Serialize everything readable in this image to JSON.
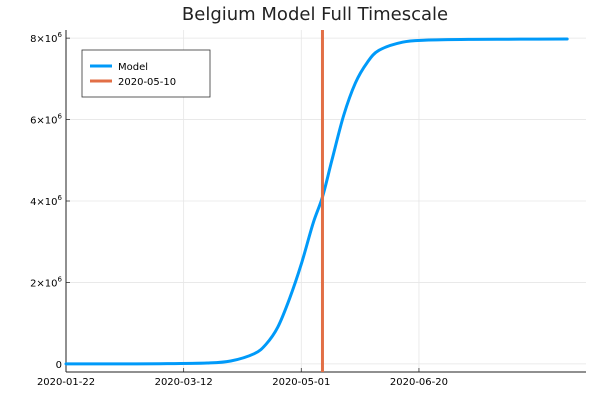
{
  "chart_data": {
    "type": "line",
    "title": "Belgium Model Full Timescale",
    "xlabel": "",
    "ylabel": "",
    "x_axis_type": "date",
    "xlim": [
      "2020-01-22",
      "2020-08-30"
    ],
    "ylim": [
      -200000,
      8200000
    ],
    "grid": true,
    "legend_position": "top-left",
    "x_tick_labels": [
      "2020-01-22",
      "2020-03-12",
      "2020-05-01",
      "2020-06-20"
    ],
    "y_ticks": [
      {
        "value": 0,
        "base": "0",
        "exponent": ""
      },
      {
        "value": 2000000,
        "base": "2×10",
        "exponent": "6"
      },
      {
        "value": 4000000,
        "base": "4×10",
        "exponent": "6"
      },
      {
        "value": 6000000,
        "base": "6×10",
        "exponent": "6"
      },
      {
        "value": 8000000,
        "base": "8×10",
        "exponent": "6"
      }
    ],
    "series": [
      {
        "name": "Model",
        "color": "#009AF9",
        "x": [
          "2020-01-22",
          "2020-02-11",
          "2020-03-02",
          "2020-03-22",
          "2020-04-01",
          "2020-04-11",
          "2020-04-16",
          "2020-04-21",
          "2020-04-26",
          "2020-05-01",
          "2020-05-06",
          "2020-05-10",
          "2020-05-14",
          "2020-05-19",
          "2020-05-24",
          "2020-05-29",
          "2020-06-03",
          "2020-06-13",
          "2020-06-23",
          "2020-07-13",
          "2020-08-02",
          "2020-08-22"
        ],
        "y": [
          0,
          0,
          3000,
          20000,
          70000,
          250000,
          480000,
          900000,
          1600000,
          2450000,
          3450000,
          4100000,
          5000000,
          6100000,
          6900000,
          7400000,
          7700000,
          7900000,
          7950000,
          7970000,
          7975000,
          7980000
        ]
      }
    ],
    "vlines": [
      {
        "name": "2020-05-10",
        "x": "2020-05-10",
        "color": "#E26F46"
      }
    ]
  }
}
